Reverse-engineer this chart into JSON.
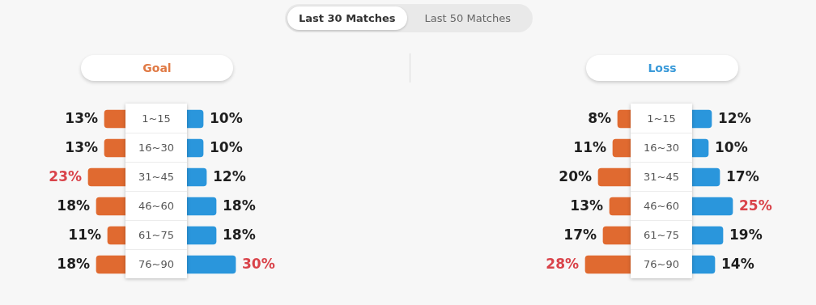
{
  "chart_data": [
    {
      "type": "bar",
      "orientation": "horizontal",
      "title": "Goal",
      "annotations": [
        "Last 30 Matches",
        "Last 50 Matches"
      ],
      "categories": [
        "1~15",
        "16~30",
        "31~45",
        "46~60",
        "61~75",
        "76~90"
      ],
      "tick_labels": "y",
      "legend": false,
      "color": "#e06a30",
      "values": [
        13,
        13,
        23,
        18,
        11,
        18
      ],
      "value_labels": [
        "13%",
        "13%",
        "23%",
        "18%",
        "11%",
        "18%"
      ]
    },
    {
      "type": "bar",
      "orientation": "horizontal",
      "categories": [
        null,
        null,
        null,
        null,
        null,
        null
      ],
      "tick_labels": false,
      "legend": false,
      "color": "#2a96dc",
      "values": [
        10,
        10,
        12,
        18,
        18,
        30
      ],
      "value_labels": [
        "10%",
        "10%",
        "12%",
        "18%",
        "18%",
        "30%"
      ]
    },
    {
      "type": "bar",
      "orientation": "horizontal",
      "title": "Loss",
      "categories": [
        "1~15",
        "16~30",
        "31~45",
        "46~60",
        "61~75",
        "76~90"
      ],
      "tick_labels": "y",
      "legend": false,
      "color": "#e06a30",
      "values": [
        8,
        11,
        20,
        13,
        17,
        28
      ],
      "value_labels": [
        "8%",
        "11%",
        "20%",
        "13%",
        "17%",
        "28%"
      ]
    },
    {
      "type": "bar",
      "orientation": "horizontal",
      "categories": [
        null,
        null,
        null,
        null,
        null,
        null
      ],
      "tick_labels": false,
      "legend": false,
      "color": "#2a96dc",
      "values": [
        12,
        10,
        17,
        25,
        19,
        14
      ],
      "value_labels": [
        "12%",
        "10%",
        "17%",
        "25%",
        "19%",
        "14%"
      ]
    }
  ]
}
